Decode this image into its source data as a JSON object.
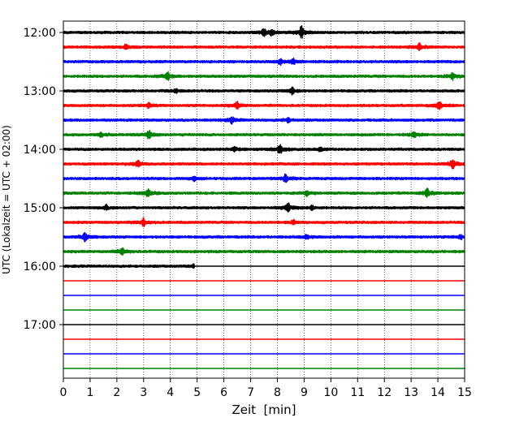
{
  "chart_data": {
    "type": "line",
    "title": "",
    "xlabel": "Zeit  [min]",
    "ylabel": "UTC (Lokalzeit = UTC + 02:00)",
    "xlim": [
      0,
      15
    ],
    "x_ticks": [
      "0",
      "1",
      "2",
      "3",
      "4",
      "5",
      "6",
      "7",
      "8",
      "9",
      "10",
      "11",
      "12",
      "13",
      "14",
      "15"
    ],
    "y_ticks": [
      "12:00",
      "13:00",
      "14:00",
      "15:00",
      "16:00",
      "17:00"
    ],
    "grid": "vertical dotted lines at each minute",
    "legend": "none",
    "trace_interval_min": 15,
    "trace_start": "12:00",
    "colors": [
      "#000000",
      "#ff0000",
      "#0000ff",
      "#008000"
    ],
    "series": [
      {
        "start": "12:00",
        "color": "#000000",
        "data_end_min": 15,
        "events": [
          {
            "t": 7.5,
            "amp": 0.6
          },
          {
            "t": 7.8,
            "amp": 0.45
          },
          {
            "t": 8.9,
            "amp": 1.0
          }
        ]
      },
      {
        "start": "12:15",
        "color": "#ff0000",
        "data_end_min": 15,
        "events": [
          {
            "t": 13.3,
            "amp": 0.6
          },
          {
            "t": 2.35,
            "amp": 0.35
          }
        ]
      },
      {
        "start": "12:30",
        "color": "#0000ff",
        "data_end_min": 15,
        "events": [
          {
            "t": 8.1,
            "amp": 0.45
          },
          {
            "t": 8.6,
            "amp": 0.4
          }
        ]
      },
      {
        "start": "12:45",
        "color": "#008000",
        "data_end_min": 15,
        "events": [
          {
            "t": 3.9,
            "amp": 0.75
          },
          {
            "t": 14.55,
            "amp": 0.55
          }
        ]
      },
      {
        "start": "13:00",
        "color": "#000000",
        "data_end_min": 15,
        "events": [
          {
            "t": 8.55,
            "amp": 0.6
          },
          {
            "t": 4.2,
            "amp": 0.3
          }
        ]
      },
      {
        "start": "13:15",
        "color": "#ff0000",
        "data_end_min": 15,
        "events": [
          {
            "t": 6.5,
            "amp": 0.55
          },
          {
            "t": 14.05,
            "amp": 0.7
          },
          {
            "t": 3.2,
            "amp": 0.4
          }
        ]
      },
      {
        "start": "13:30",
        "color": "#0000ff",
        "data_end_min": 15,
        "events": [
          {
            "t": 6.3,
            "amp": 0.5
          },
          {
            "t": 8.4,
            "amp": 0.35
          }
        ]
      },
      {
        "start": "13:45",
        "color": "#008000",
        "data_end_min": 15,
        "events": [
          {
            "t": 3.2,
            "amp": 0.7
          },
          {
            "t": 13.1,
            "amp": 0.5
          },
          {
            "t": 1.4,
            "amp": 0.3
          }
        ]
      },
      {
        "start": "14:00",
        "color": "#000000",
        "data_end_min": 15,
        "events": [
          {
            "t": 8.1,
            "amp": 0.8
          },
          {
            "t": 9.6,
            "amp": 0.35
          },
          {
            "t": 6.4,
            "amp": 0.4
          }
        ]
      },
      {
        "start": "14:15",
        "color": "#ff0000",
        "data_end_min": 15,
        "events": [
          {
            "t": 2.8,
            "amp": 0.55
          },
          {
            "t": 14.55,
            "amp": 0.8
          }
        ]
      },
      {
        "start": "14:30",
        "color": "#0000ff",
        "data_end_min": 15,
        "events": [
          {
            "t": 8.3,
            "amp": 0.6
          },
          {
            "t": 4.9,
            "amp": 0.3
          }
        ]
      },
      {
        "start": "14:45",
        "color": "#008000",
        "data_end_min": 15,
        "events": [
          {
            "t": 3.15,
            "amp": 0.65
          },
          {
            "t": 13.6,
            "amp": 0.7
          },
          {
            "t": 9.1,
            "amp": 0.35
          }
        ]
      },
      {
        "start": "15:00",
        "color": "#000000",
        "data_end_min": 15,
        "events": [
          {
            "t": 8.4,
            "amp": 0.75
          },
          {
            "t": 1.6,
            "amp": 0.35
          },
          {
            "t": 9.3,
            "amp": 0.35
          }
        ]
      },
      {
        "start": "15:15",
        "color": "#ff0000",
        "data_end_min": 15,
        "events": [
          {
            "t": 3.0,
            "amp": 0.6
          },
          {
            "t": 8.6,
            "amp": 0.3
          }
        ]
      },
      {
        "start": "15:30",
        "color": "#0000ff",
        "data_end_min": 15,
        "events": [
          {
            "t": 0.8,
            "amp": 0.75
          },
          {
            "t": 9.1,
            "amp": 0.35
          },
          {
            "t": 14.85,
            "amp": 0.35
          }
        ]
      },
      {
        "start": "15:45",
        "color": "#008000",
        "data_end_min": 15,
        "events": [
          {
            "t": 2.2,
            "amp": 0.6
          }
        ]
      },
      {
        "start": "16:00",
        "color": "#000000",
        "data_end_min": 4.9,
        "events": [
          {
            "t": 4.9,
            "amp": 0.35
          }
        ]
      },
      {
        "start": "16:15",
        "color": "#ff0000",
        "data_end_min": 0,
        "events": []
      },
      {
        "start": "16:30",
        "color": "#0000ff",
        "data_end_min": 0,
        "events": []
      },
      {
        "start": "16:45",
        "color": "#008000",
        "data_end_min": 0,
        "events": []
      },
      {
        "start": "17:00",
        "color": "#000000",
        "data_end_min": 0,
        "events": []
      },
      {
        "start": "17:15",
        "color": "#ff0000",
        "data_end_min": 0,
        "events": []
      },
      {
        "start": "17:30",
        "color": "#0000ff",
        "data_end_min": 0,
        "events": []
      },
      {
        "start": "17:45",
        "color": "#008000",
        "data_end_min": 0,
        "events": []
      }
    ]
  }
}
